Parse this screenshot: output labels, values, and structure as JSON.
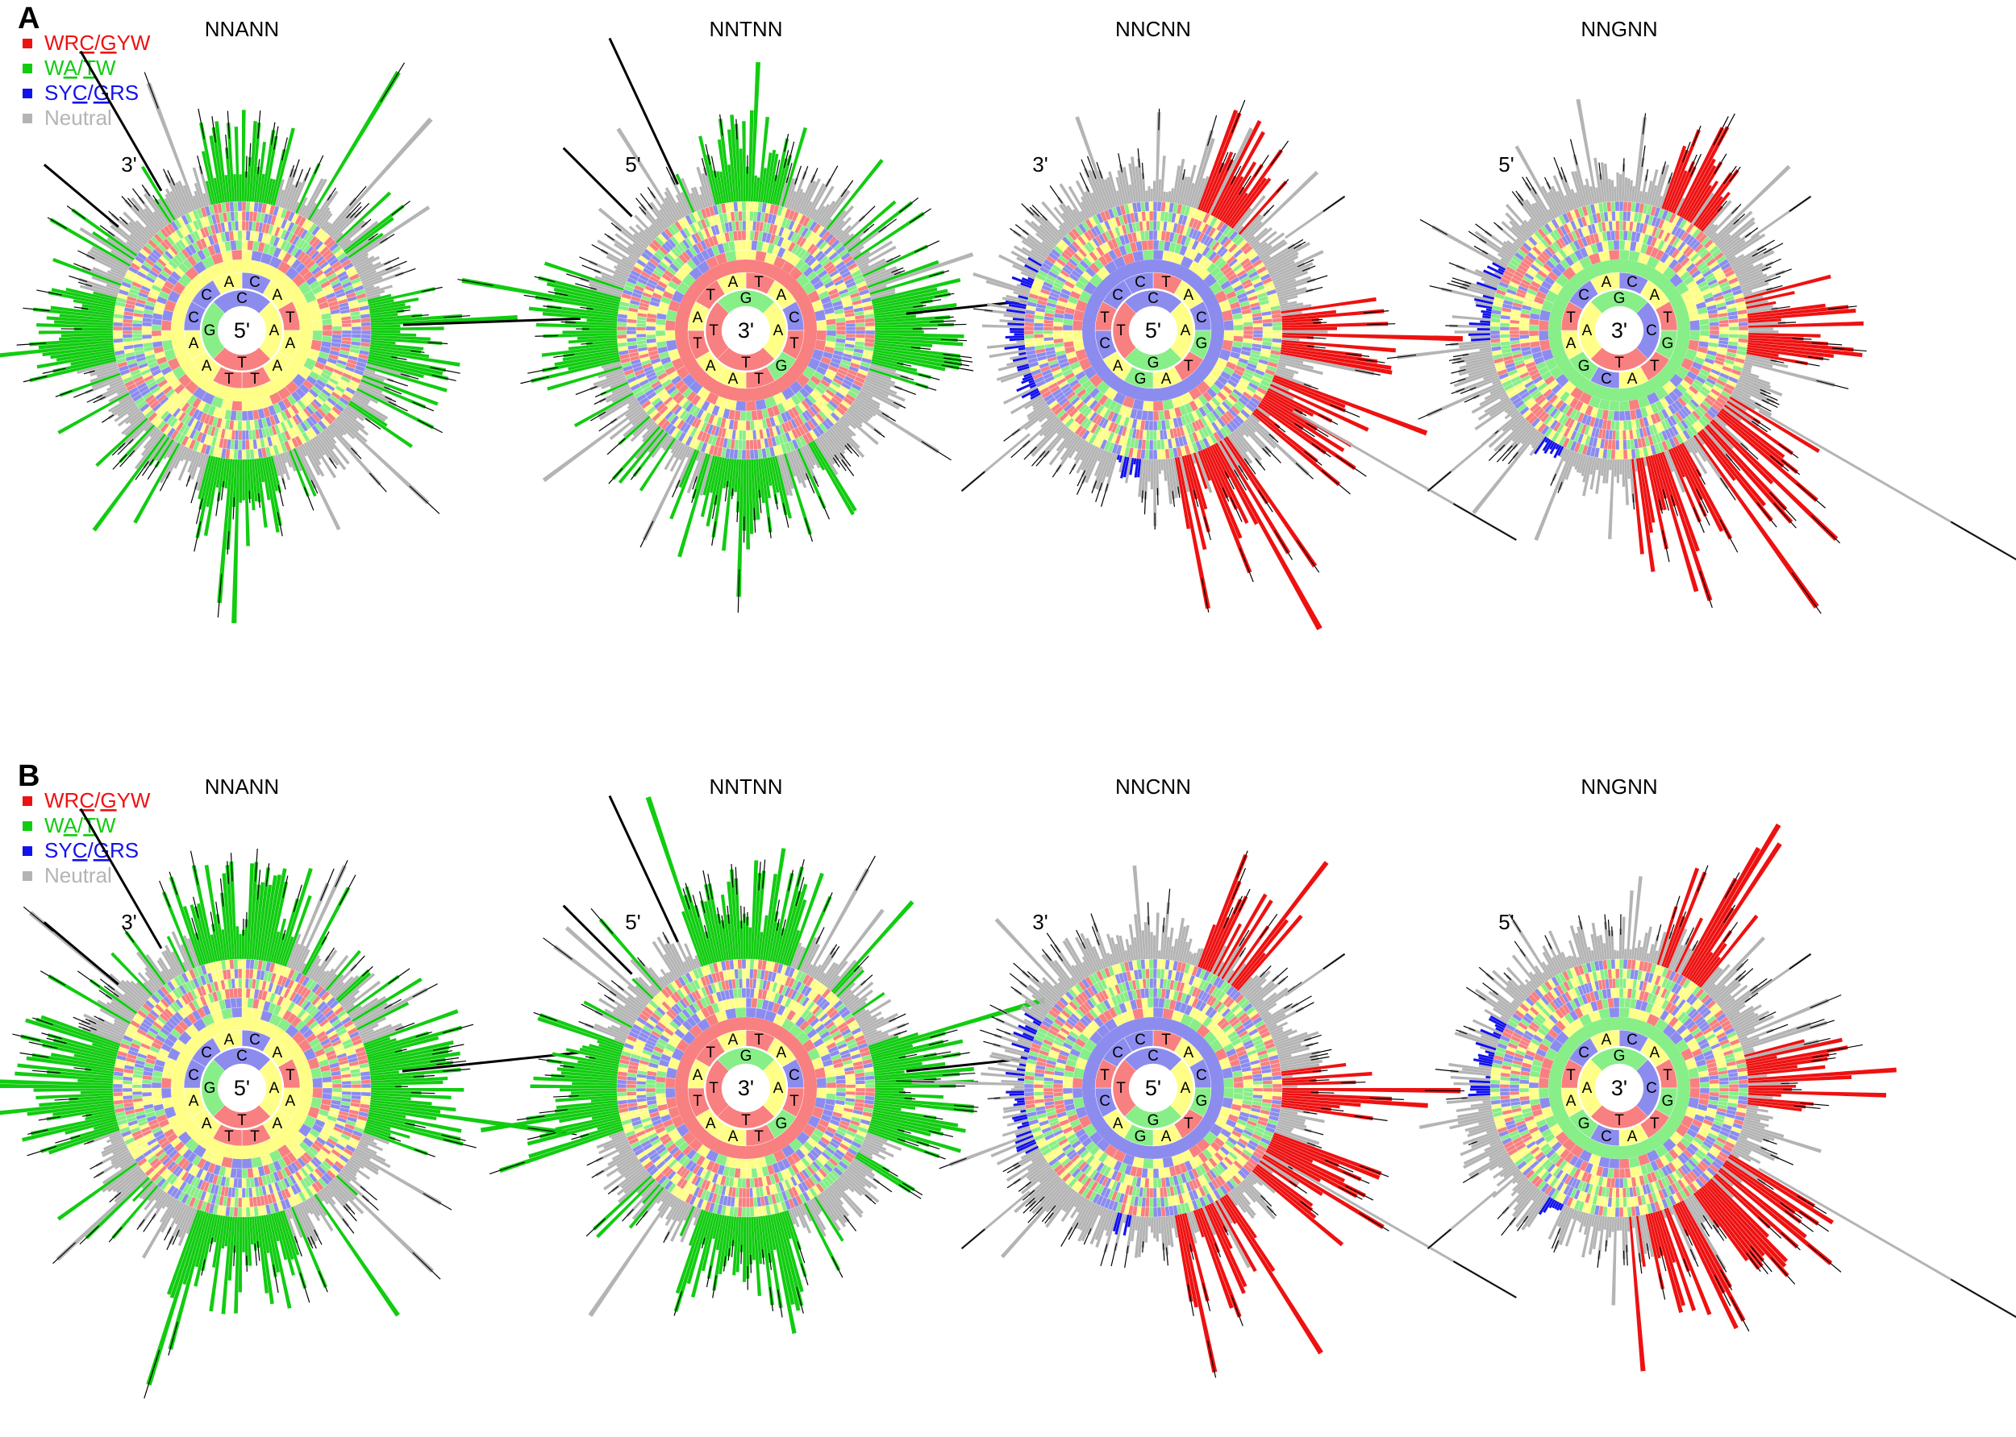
{
  "chart_data": {
    "type": "radial-bar",
    "panels": [
      {
        "label": "A",
        "legend": [
          {
            "pre": "WR",
            "u1": "C",
            "mid": "/",
            "u2": "G",
            "post": "YW",
            "color": "#ee1111"
          },
          {
            "pre": "W",
            "u1": "A",
            "mid": "/",
            "u2": "T",
            "post": "W",
            "color": "#11cc11"
          },
          {
            "pre": "SY",
            "u1": "C",
            "mid": "/",
            "u2": "G",
            "post": "RS",
            "color": "#1111ee"
          },
          {
            "pre": "",
            "u1": "",
            "mid": "Neutral",
            "u2": "",
            "post": "",
            "color": "#b4b4b4"
          }
        ],
        "charts": [
          {
            "title": "NNANN",
            "center": "5'",
            "strand_label": "3'",
            "fill": "#ffff88",
            "motif": "green",
            "ring2": [
              "C",
              "A",
              "T",
              "A",
              "A",
              "T",
              "T",
              "A",
              "A",
              "C",
              "C",
              "A"
            ],
            "ring1": [
              "C",
              "A",
              "T",
              "G",
              "A"
            ]
          },
          {
            "title": "NNTNN",
            "center": "3'",
            "strand_label": "5'",
            "fill": "#f88080",
            "motif": "green",
            "ring2": [
              "T",
              "A",
              "C",
              "T",
              "G",
              "T",
              "A",
              "A",
              "T",
              "A",
              "T",
              "A"
            ],
            "ring1": [
              "G",
              "A",
              "T",
              "T",
              "C"
            ]
          },
          {
            "title": "NNCNN",
            "center": "5'",
            "strand_label": "3'",
            "fill": "#8c8cee",
            "motif": "mixed",
            "ring2": [
              "T",
              "A",
              "C",
              "G",
              "T",
              "A",
              "G",
              "A",
              "C",
              "T",
              "C",
              "C"
            ],
            "ring1": [
              "C",
              "A",
              "G",
              "T",
              "A"
            ]
          },
          {
            "title": "NNGNN",
            "center": "3'",
            "strand_label": "5'",
            "fill": "#88ee88",
            "motif": "mixed",
            "ring2": [
              "C",
              "A",
              "T",
              "G",
              "T",
              "A",
              "C",
              "G",
              "A",
              "T",
              "C",
              "A"
            ],
            "ring1": [
              "G",
              "C",
              "T",
              "A",
              "T"
            ]
          }
        ]
      },
      {
        "label": "B",
        "legend": [
          {
            "pre": "WR",
            "u1": "C",
            "mid": "/",
            "u2": "G",
            "post": "YW",
            "color": "#ee1111"
          },
          {
            "pre": "W",
            "u1": "A",
            "mid": "/",
            "u2": "T",
            "post": "W",
            "color": "#11cc11"
          },
          {
            "pre": "SY",
            "u1": "C",
            "mid": "/",
            "u2": "G",
            "post": "RS",
            "color": "#1111ee"
          },
          {
            "pre": "",
            "u1": "",
            "mid": "Neutral",
            "u2": "",
            "post": "",
            "color": "#b4b4b4"
          }
        ],
        "charts": [
          {
            "title": "NNANN",
            "center": "5'",
            "strand_label": "3'",
            "fill": "#ffff88",
            "motif": "green",
            "ring2": [
              "C",
              "A",
              "T",
              "A",
              "A",
              "T",
              "T",
              "A",
              "A",
              "C",
              "C",
              "A"
            ],
            "ring1": [
              "C",
              "A",
              "T",
              "G",
              "A"
            ]
          },
          {
            "title": "NNTNN",
            "center": "3'",
            "strand_label": "5'",
            "fill": "#f88080",
            "motif": "green",
            "ring2": [
              "T",
              "A",
              "C",
              "T",
              "G",
              "T",
              "A",
              "A",
              "T",
              "A",
              "T",
              "A"
            ],
            "ring1": [
              "G",
              "A",
              "T",
              "T",
              "C"
            ]
          },
          {
            "title": "NNCNN",
            "center": "5'",
            "strand_label": "3'",
            "fill": "#8c8cee",
            "motif": "mixed",
            "ring2": [
              "T",
              "A",
              "C",
              "G",
              "T",
              "A",
              "G",
              "A",
              "C",
              "T",
              "C",
              "C"
            ],
            "ring1": [
              "C",
              "A",
              "G",
              "T",
              "A"
            ]
          },
          {
            "title": "NNGNN",
            "center": "3'",
            "strand_label": "5'",
            "fill": "#88ee88",
            "motif": "mixed",
            "ring2": [
              "C",
              "A",
              "T",
              "G",
              "T",
              "A",
              "C",
              "G",
              "A",
              "T",
              "C",
              "A"
            ],
            "ring1": [
              "G",
              "C",
              "T",
              "A",
              "T"
            ]
          }
        ]
      }
    ],
    "base_colors": {
      "A": "#ffff88",
      "C": "#8c8cee",
      "G": "#88ee88",
      "T": "#f88080"
    },
    "category_colors": {
      "hot": "#ee1111",
      "wa": "#11cc11",
      "cold": "#1111ee",
      "neutral": "#b4b4b4"
    }
  }
}
